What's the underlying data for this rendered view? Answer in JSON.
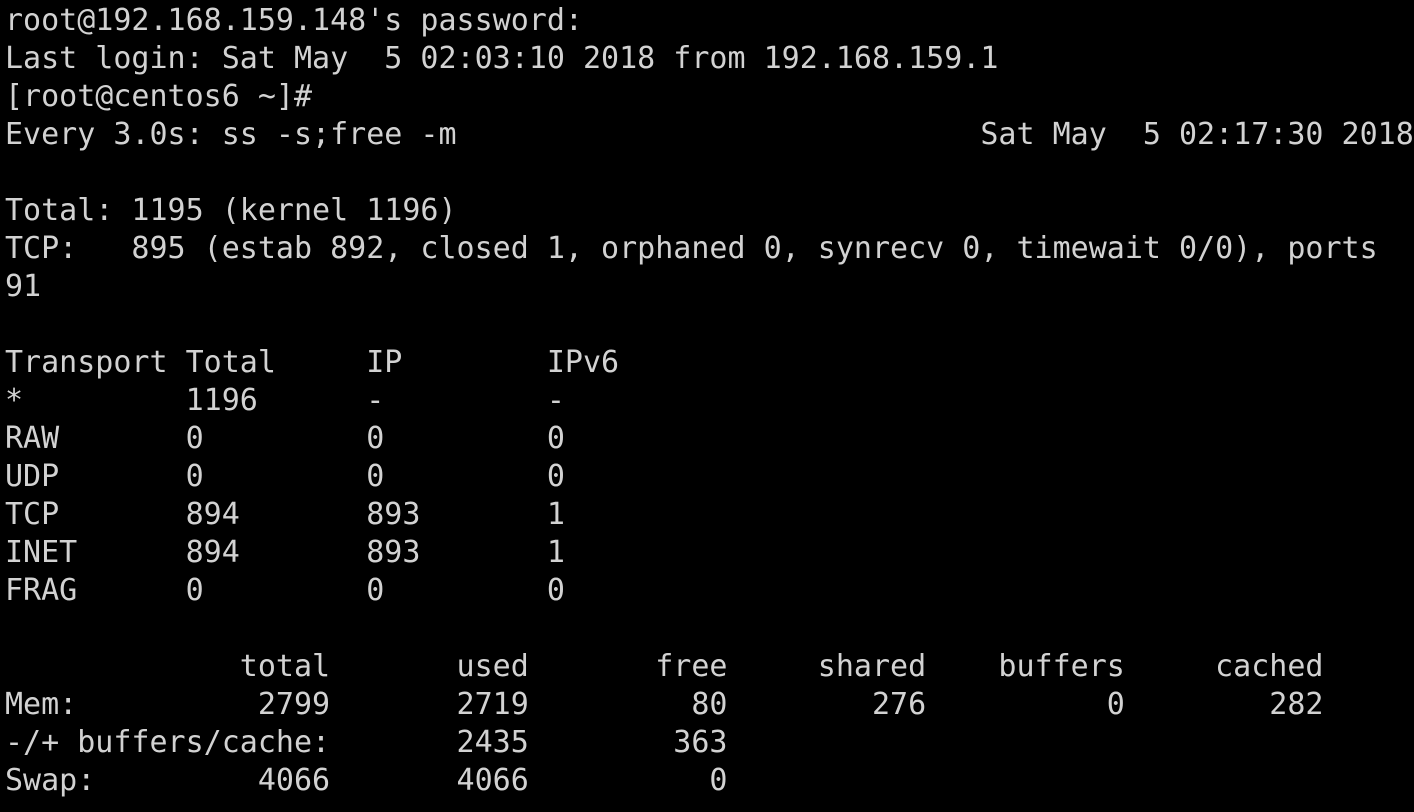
{
  "terminal": {
    "background": "#000000",
    "foreground": "#d2d2d2",
    "lines": [
      "root@192.168.159.148's password:",
      "Last login: Sat May  5 02:03:10 2018 from 192.168.159.1",
      "[root@centos6 ~]#",
      "Every 3.0s: ss -s;free -m                             Sat May  5 02:17:30 2018",
      "",
      "Total: 1195 (kernel 1196)",
      "TCP:   895 (estab 892, closed 1, orphaned 0, synrecv 0, timewait 0/0), ports",
      "91",
      "",
      "Transport Total     IP        IPv6",
      "*         1196      -         -",
      "RAW       0         0         0",
      "UDP       0         0         0",
      "TCP       894       893       1",
      "INET      894       893       1",
      "FRAG      0         0         0",
      "",
      "             total       used       free     shared    buffers     cached",
      "Mem:          2799       2719         80        276          0        282",
      "-/+ buffers/cache:       2435        363",
      "Swap:         4066       4066          0"
    ]
  }
}
